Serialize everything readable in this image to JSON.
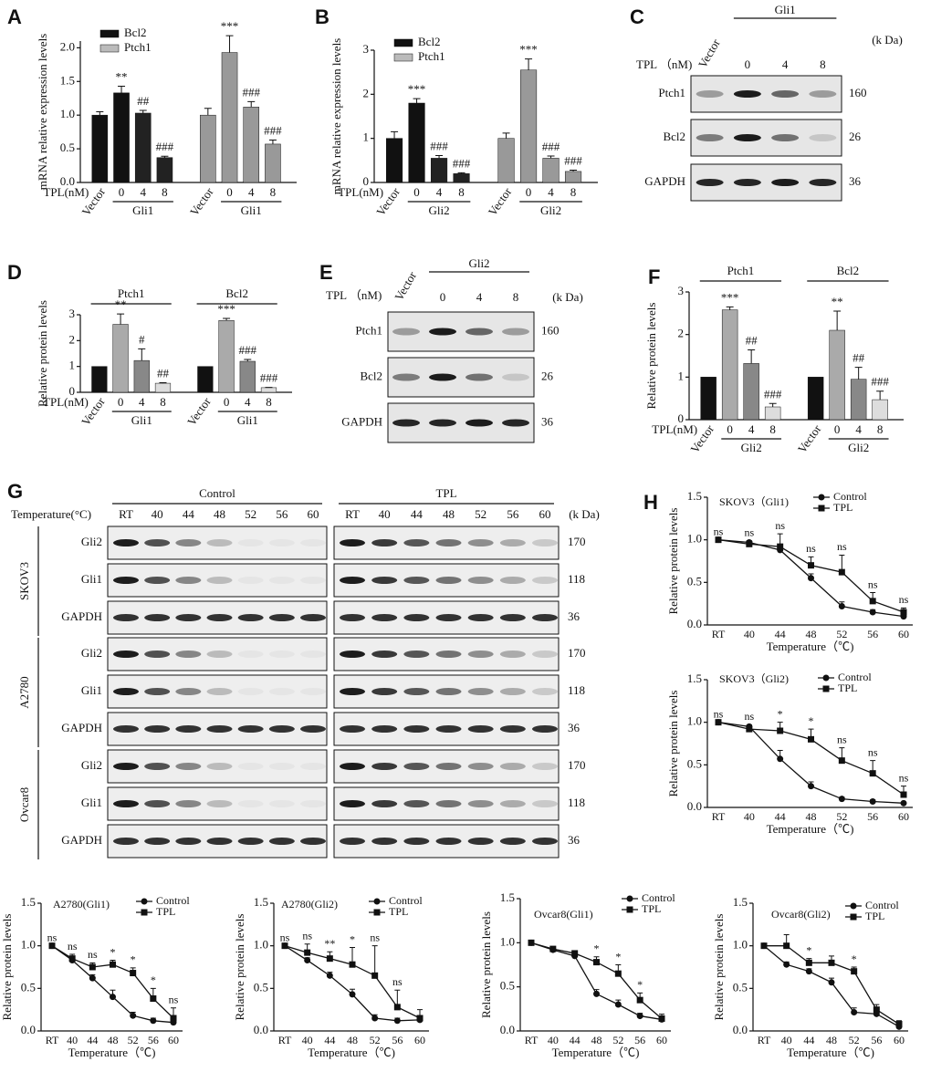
{
  "chart_data": [
    {
      "type": "bar",
      "panel": "A",
      "ylabel": "mRNA relative expression levels",
      "xprefix": "TPL(nM)",
      "categories": [
        "Vector",
        "0",
        "4",
        "8",
        "Vector",
        "0",
        "4",
        "8"
      ],
      "values": [
        1.0,
        1.33,
        1.03,
        0.37,
        1.0,
        1.93,
        1.12,
        0.57
      ],
      "errors": [
        0.05,
        0.1,
        0.04,
        0.02,
        0.1,
        0.25,
        0.08,
        0.06
      ],
      "colors": [
        "#111",
        "#111",
        "#222",
        "#222",
        "#999",
        "#999",
        "#999",
        "#999"
      ],
      "annotations": [
        null,
        "**",
        "##",
        "###",
        null,
        "***",
        "###",
        "###"
      ],
      "group_labels": [
        "Gli1",
        "Gli1"
      ],
      "legend": [
        {
          "name": "Bcl2",
          "color": "#111"
        },
        {
          "name": "Ptch1",
          "color": "#bbb"
        }
      ],
      "ylim": [
        0,
        2.1
      ],
      "yticks": [
        {
          "value": 0,
          "label": "0.0"
        },
        {
          "value": 0.5,
          "label": "0.5"
        },
        {
          "value": 1,
          "label": "1.0"
        },
        {
          "value": 1.5,
          "label": "1.5"
        },
        {
          "value": 2,
          "label": "2.0"
        }
      ]
    },
    {
      "type": "bar",
      "panel": "B",
      "ylabel": "mRNA relative expression levels",
      "xprefix": "TPL(nM)",
      "categories": [
        "Vector",
        "0",
        "4",
        "8",
        "Vector",
        "0",
        "4",
        "8"
      ],
      "values": [
        1.0,
        1.8,
        0.55,
        0.2,
        1.0,
        2.55,
        0.55,
        0.25
      ],
      "errors": [
        0.15,
        0.1,
        0.06,
        0.02,
        0.12,
        0.25,
        0.05,
        0.03
      ],
      "colors": [
        "#111",
        "#111",
        "#222",
        "#222",
        "#999",
        "#999",
        "#999",
        "#999"
      ],
      "annotations": [
        null,
        "***",
        "###",
        "###",
        null,
        "***",
        "###",
        "###"
      ],
      "group_labels": [
        "Gli2",
        "Gli2"
      ],
      "legend": [
        {
          "name": "Bcl2",
          "color": "#111"
        },
        {
          "name": "Ptch1",
          "color": "#bbb"
        }
      ],
      "ylim": [
        0,
        3
      ],
      "yticks": [
        0,
        1,
        2,
        3
      ]
    },
    {
      "type": "bar",
      "panel": "D",
      "ylabel": "Relative protein levels",
      "xprefix": "TPL(nM)",
      "categories": [
        "Vector",
        "0",
        "4",
        "8",
        "Vector",
        "0",
        "4",
        "8"
      ],
      "values": [
        1.0,
        2.63,
        1.23,
        0.35,
        1.0,
        2.78,
        1.2,
        0.18
      ],
      "errors": [
        0,
        0.4,
        0.45,
        0.02,
        0,
        0.08,
        0.07,
        0.01
      ],
      "colors": [
        "#111",
        "#aaa",
        "#888",
        "#ddd",
        "#111",
        "#aaa",
        "#888",
        "#ddd"
      ],
      "annotations": [
        null,
        "**",
        "#",
        "##",
        null,
        "***",
        "###",
        "###"
      ],
      "group_titles": [
        "Ptch1",
        "Bcl2"
      ],
      "group_labels": [
        "Gli1",
        "Gli1"
      ],
      "ylim": [
        0,
        3
      ],
      "yticks": [
        0,
        1,
        2,
        3
      ]
    },
    {
      "type": "bar",
      "panel": "F",
      "ylabel": "Relative protein levels",
      "xprefix": "TPL(nM)",
      "categories": [
        "Vector",
        "0",
        "4",
        "8",
        "Vector",
        "0",
        "4",
        "8"
      ],
      "values": [
        1.0,
        2.58,
        1.32,
        0.3,
        1.0,
        2.1,
        0.95,
        0.47
      ],
      "errors": [
        0,
        0.07,
        0.32,
        0.08,
        0,
        0.45,
        0.28,
        0.2
      ],
      "colors": [
        "#111",
        "#aaa",
        "#888",
        "#ddd",
        "#111",
        "#aaa",
        "#888",
        "#ddd"
      ],
      "annotations": [
        null,
        "***",
        "##",
        "###",
        null,
        "**",
        "##",
        "###"
      ],
      "group_titles": [
        "Ptch1",
        "Bcl2"
      ],
      "group_labels": [
        "Gli2",
        "Gli2"
      ],
      "ylim": [
        0,
        3
      ],
      "yticks": [
        0,
        1,
        2,
        3
      ]
    },
    {
      "type": "line",
      "panel": "H",
      "title": "SKOV3（Gli1)",
      "ylabel": "Relative protein levels",
      "xlabel": "Temperature（℃)",
      "categories": [
        "RT",
        "40",
        "44",
        "48",
        "52",
        "56",
        "60"
      ],
      "series": [
        {
          "name": "Control",
          "marker": "circle",
          "values": [
            1,
            0.97,
            0.88,
            0.55,
            0.22,
            0.15,
            0.1
          ],
          "errors": [
            0,
            0.02,
            0.03,
            0.05,
            0.05,
            0.03,
            0.02
          ]
        },
        {
          "name": "TPL",
          "marker": "square",
          "values": [
            1,
            0.95,
            0.92,
            0.7,
            0.62,
            0.28,
            0.15
          ],
          "errors": [
            0,
            0.03,
            0.15,
            0.1,
            0.2,
            0.1,
            0.05
          ]
        }
      ],
      "annotations": [
        "ns",
        "ns",
        "ns",
        "ns",
        "ns",
        "ns",
        "ns"
      ],
      "ylim": [
        0,
        1.5
      ],
      "yticks": [
        {
          "value": 0,
          "label": "0.0"
        },
        {
          "value": 0.5,
          "label": "0.5"
        },
        {
          "value": 1,
          "label": "1.0"
        },
        {
          "value": 1.5,
          "label": "1.5"
        }
      ]
    },
    {
      "type": "line",
      "title": "SKOV3（Gli2)",
      "ylabel": "Relative protein levels",
      "xlabel": "Temperature（℃)",
      "categories": [
        "RT",
        "40",
        "44",
        "48",
        "52",
        "56",
        "60"
      ],
      "series": [
        {
          "name": "Control",
          "marker": "circle",
          "values": [
            1,
            0.95,
            0.57,
            0.25,
            0.1,
            0.07,
            0.05
          ],
          "errors": [
            0,
            0.02,
            0.1,
            0.05,
            0.02,
            0.02,
            0.01
          ]
        },
        {
          "name": "TPL",
          "marker": "square",
          "values": [
            1,
            0.92,
            0.9,
            0.8,
            0.55,
            0.4,
            0.15
          ],
          "errors": [
            0,
            0.03,
            0.1,
            0.12,
            0.15,
            0.15,
            0.1
          ]
        }
      ],
      "annotations": [
        "ns",
        "ns",
        "*",
        "*",
        "ns",
        "ns",
        "ns"
      ],
      "ylim": [
        0,
        1.5
      ],
      "yticks": [
        {
          "value": 0,
          "label": "0.0"
        },
        {
          "value": 0.5,
          "label": "0.5"
        },
        {
          "value": 1,
          "label": "1.0"
        },
        {
          "value": 1.5,
          "label": "1.5"
        }
      ]
    },
    {
      "type": "line",
      "title": "A2780(Gli1)",
      "ylabel": "Relative protein levels",
      "xlabel": "Temperature（℃)",
      "categories": [
        "RT",
        "40",
        "44",
        "48",
        "52",
        "56",
        "60"
      ],
      "series": [
        {
          "name": "Control",
          "marker": "circle",
          "values": [
            1,
            0.83,
            0.62,
            0.4,
            0.18,
            0.12,
            0.1
          ],
          "errors": [
            0,
            0.03,
            0.04,
            0.08,
            0.04,
            0.03,
            0.05
          ]
        },
        {
          "name": "TPL",
          "marker": "square",
          "values": [
            1,
            0.85,
            0.75,
            0.78,
            0.68,
            0.38,
            0.15
          ],
          "errors": [
            0,
            0.05,
            0.05,
            0.05,
            0.06,
            0.12,
            0.12
          ]
        }
      ],
      "annotations": [
        "ns",
        "ns",
        "ns",
        "*",
        "*",
        "*",
        "ns"
      ],
      "ylim": [
        0,
        1.5
      ],
      "yticks": [
        {
          "value": 0,
          "label": "0.0"
        },
        {
          "value": 0.5,
          "label": "0.5"
        },
        {
          "value": 1,
          "label": "1.0"
        },
        {
          "value": 1.5,
          "label": "1.5"
        }
      ]
    },
    {
      "type": "line",
      "title": "A2780(Gli2)",
      "ylabel": "Relative protein levels",
      "xlabel": "Temperature（℃)",
      "categories": [
        "RT",
        "40",
        "44",
        "48",
        "52",
        "56",
        "60"
      ],
      "series": [
        {
          "name": "Control",
          "marker": "circle",
          "values": [
            1,
            0.83,
            0.65,
            0.43,
            0.15,
            0.12,
            0.13
          ],
          "errors": [
            0,
            0.03,
            0.04,
            0.06,
            0.04,
            0.03,
            0.05
          ]
        },
        {
          "name": "TPL",
          "marker": "square",
          "values": [
            1,
            0.92,
            0.85,
            0.78,
            0.65,
            0.28,
            0.15
          ],
          "errors": [
            0,
            0.1,
            0.08,
            0.2,
            0.35,
            0.2,
            0.1
          ]
        }
      ],
      "annotations": [
        "ns",
        "ns",
        "**",
        "*",
        "ns",
        "ns",
        null
      ],
      "ylim": [
        0,
        1.5
      ],
      "yticks": [
        {
          "value": 0,
          "label": "0.0"
        },
        {
          "value": 0.5,
          "label": "0.5"
        },
        {
          "value": 1,
          "label": "1.0"
        },
        {
          "value": 1.5,
          "label": "1.5"
        }
      ]
    },
    {
      "type": "line",
      "title": "Ovcar8(Gli1)",
      "ylabel": "Relative protein levels",
      "xlabel": "Temperature（℃)",
      "categories": [
        "RT",
        "40",
        "44",
        "48",
        "52",
        "56",
        "60"
      ],
      "series": [
        {
          "name": "Control",
          "marker": "circle",
          "values": [
            1,
            0.92,
            0.85,
            0.42,
            0.3,
            0.17,
            0.13
          ],
          "errors": [
            0,
            0.02,
            0.03,
            0.05,
            0.05,
            0.03,
            0.03
          ]
        },
        {
          "name": "TPL",
          "marker": "square",
          "values": [
            1,
            0.93,
            0.88,
            0.78,
            0.65,
            0.35,
            0.14
          ],
          "errors": [
            0,
            0.02,
            0.03,
            0.06,
            0.1,
            0.08,
            0.05
          ]
        }
      ],
      "annotations": [
        null,
        null,
        null,
        "*",
        "*",
        "*",
        null
      ],
      "ylim": [
        0,
        1.5
      ],
      "yticks": [
        {
          "value": 0,
          "label": "0.0"
        },
        {
          "value": 0.5,
          "label": "0.5"
        },
        {
          "value": 1,
          "label": "1.0"
        },
        {
          "value": 1.5,
          "label": "1.5"
        }
      ]
    },
    {
      "type": "line",
      "title": "Ovcar8(Gli2)",
      "ylabel": "Relative protein levels",
      "xlabel": "Temperature（℃)",
      "categories": [
        "RT",
        "40",
        "44",
        "48",
        "52",
        "56",
        "60"
      ],
      "series": [
        {
          "name": "Control",
          "marker": "circle",
          "values": [
            1,
            0.78,
            0.7,
            0.57,
            0.22,
            0.2,
            0.05
          ],
          "errors": [
            0,
            0.03,
            0.03,
            0.05,
            0.05,
            0.04,
            0.02
          ]
        },
        {
          "name": "TPL",
          "marker": "square",
          "values": [
            1,
            1.0,
            0.8,
            0.8,
            0.7,
            0.25,
            0.08
          ],
          "errors": [
            0,
            0.13,
            0.05,
            0.08,
            0.05,
            0.06,
            0.04
          ]
        }
      ],
      "annotations": [
        null,
        null,
        "*",
        null,
        "*",
        null,
        null
      ],
      "ylim": [
        0,
        1.5
      ],
      "yticks": [
        {
          "value": 0,
          "label": "0.0"
        },
        {
          "value": 0.5,
          "label": "0.5"
        },
        {
          "value": 1,
          "label": "1.0"
        },
        {
          "value": 1.5,
          "label": "1.5"
        }
      ]
    }
  ],
  "blots": [
    {
      "panel": "C",
      "tpl_label": "TPL （nM)",
      "lanes": [
        "Vector",
        "0",
        "4",
        "8"
      ],
      "group": "Gli1",
      "kda_label": "(k Da)",
      "rows": [
        {
          "name": "Ptch1",
          "kda": "160"
        },
        {
          "name": "Bcl2",
          "kda": "26"
        },
        {
          "name": "GAPDH",
          "kda": "36"
        }
      ]
    },
    {
      "panel": "E",
      "tpl_label": "TPL （nM)",
      "lanes": [
        "Vector",
        "0",
        "4",
        "8"
      ],
      "group": "Gli2",
      "kda_label": "(k Da)",
      "rows": [
        {
          "name": "Ptch1",
          "kda": "160"
        },
        {
          "name": "Bcl2",
          "kda": "26"
        },
        {
          "name": "GAPDH",
          "kda": "36"
        }
      ]
    }
  ],
  "thermal_blot": {
    "panel": "G",
    "xlabel": "Temperature(°C)",
    "conditions": [
      "Control",
      "TPL"
    ],
    "lanes": [
      "RT",
      "40",
      "44",
      "48",
      "52",
      "56",
      "60"
    ],
    "kda_label": "(k Da)",
    "cell_lines": [
      {
        "name": "SKOV3",
        "rows": [
          {
            "name": "Gli2",
            "kda": "170"
          },
          {
            "name": "Gli1",
            "kda": "118"
          },
          {
            "name": "GAPDH",
            "kda": "36"
          }
        ]
      },
      {
        "name": "A2780",
        "rows": [
          {
            "name": "Gli2",
            "kda": "170"
          },
          {
            "name": "Gli1",
            "kda": "118"
          },
          {
            "name": "GAPDH",
            "kda": "36"
          }
        ]
      },
      {
        "name": "Ovcar8",
        "rows": [
          {
            "name": "Gli2",
            "kda": "170"
          },
          {
            "name": "Gli1",
            "kda": "118"
          },
          {
            "name": "GAPDH",
            "kda": "36"
          }
        ]
      }
    ]
  }
}
